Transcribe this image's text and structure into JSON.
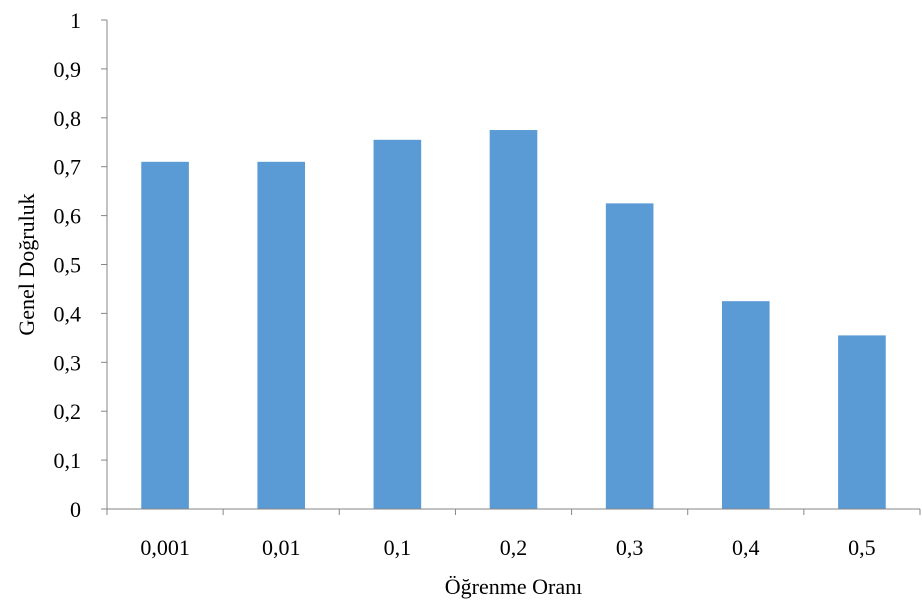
{
  "chart_data": {
    "type": "bar",
    "title": "",
    "xlabel": "Öğrenme Oranı",
    "ylabel": "Genel Doğruluk",
    "categories": [
      "0,001",
      "0,01",
      "0,1",
      "0,2",
      "0,3",
      "0,4",
      "0,5"
    ],
    "values": [
      0.71,
      0.71,
      0.755,
      0.775,
      0.625,
      0.425,
      0.355
    ],
    "ylim": [
      0,
      1
    ],
    "yticks": [
      0,
      0.1,
      0.2,
      0.3,
      0.4,
      0.5,
      0.6,
      0.7,
      0.8,
      0.9,
      1
    ],
    "ytick_labels": [
      "0",
      "0,1",
      "0,2",
      "0,3",
      "0,4",
      "0,5",
      "0,6",
      "0,7",
      "0,8",
      "0,9",
      "1"
    ],
    "grid": false,
    "legend": "none",
    "bar_color": "#5b9bd5",
    "axis_color": "#868686"
  }
}
